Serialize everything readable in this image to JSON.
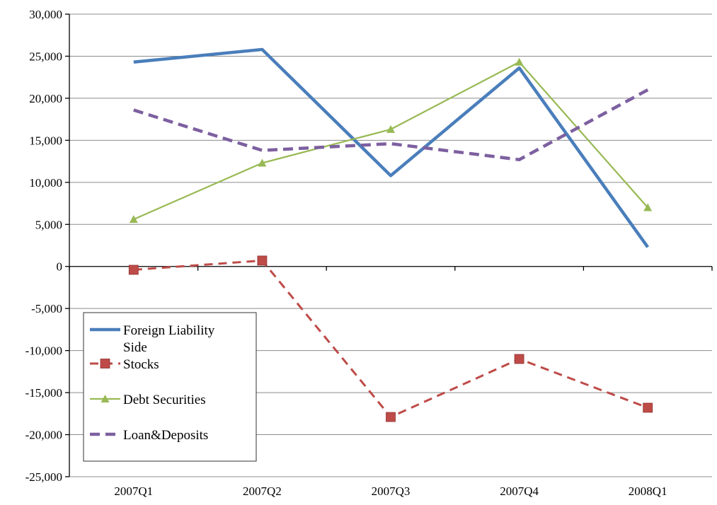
{
  "chart_data": {
    "type": "line",
    "categories": [
      "2007Q1",
      "2007Q2",
      "2007Q3",
      "2007Q4",
      "2008Q1"
    ],
    "ylim": [
      -25000,
      30000
    ],
    "ytick_step": 5000,
    "ytick_labels": [
      "-25,000",
      "-20,000",
      "-15,000",
      "-10,000",
      "-5,000",
      "0",
      "5,000",
      "10,000",
      "15,000",
      "20,000",
      "25,000",
      "30,000"
    ],
    "grid": true,
    "legend_position": "bottom-left",
    "series": [
      {
        "name": "Foreign Liability Side",
        "values": [
          24300,
          25800,
          10800,
          23600,
          2300
        ],
        "color": "#4a7ebb",
        "style": "solid-thick",
        "marker": "none"
      },
      {
        "name": "Stocks",
        "values": [
          -400,
          700,
          -17900,
          -11000,
          -16800
        ],
        "color": "#be4b48",
        "style": "dashed",
        "marker": "square"
      },
      {
        "name": "Debt Securities",
        "values": [
          5600,
          12300,
          16300,
          24300,
          7000
        ],
        "color": "#98b954",
        "style": "solid-thin",
        "marker": "triangle"
      },
      {
        "name": "Loan&Deposits",
        "values": [
          18600,
          13800,
          14600,
          12700,
          21000
        ],
        "color": "#7d60a0",
        "style": "dashed-thick",
        "marker": "none"
      }
    ]
  }
}
